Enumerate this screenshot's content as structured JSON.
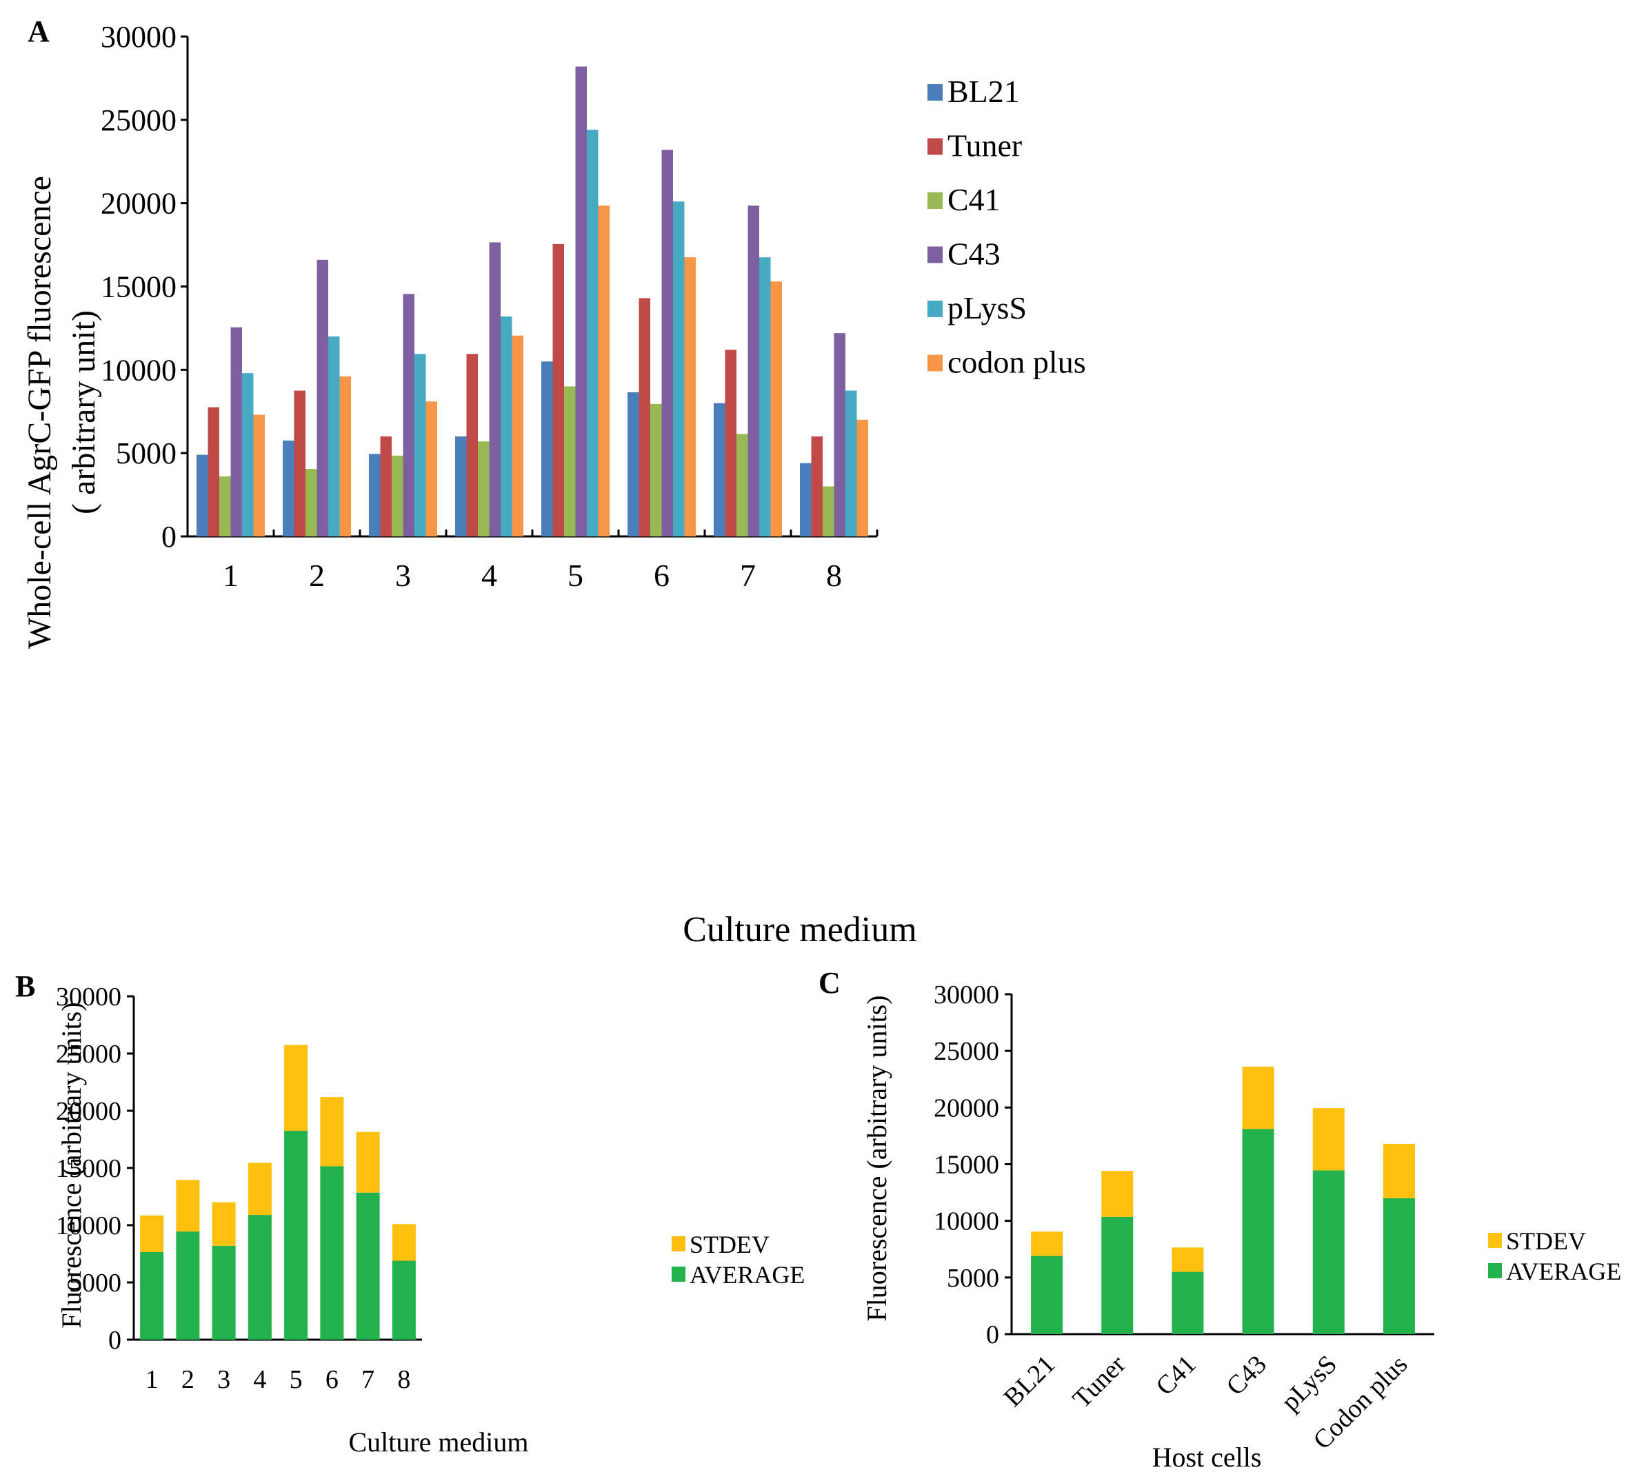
{
  "chart_data": [
    {
      "panel": "A",
      "type": "bar",
      "title": "",
      "xlabel": "Culture medium",
      "ylabel": "Whole-cell AgrC-GFP fluorescence",
      "ylabel2": "( arbitrary unit)",
      "ylim": [
        0,
        30000
      ],
      "yticks": [
        0,
        5000,
        10000,
        15000,
        20000,
        25000,
        30000
      ],
      "categories": [
        "1",
        "2",
        "3",
        "4",
        "5",
        "6",
        "7",
        "8"
      ],
      "legend_position": "right",
      "series": [
        {
          "name": "BL21",
          "color": "#4a7ebb",
          "values": [
            4900,
            5750,
            4950,
            6000,
            10500,
            8650,
            8000,
            4400
          ]
        },
        {
          "name": "Tuner",
          "color": "#be4b48",
          "values": [
            7750,
            8750,
            6000,
            10950,
            17550,
            14300,
            11200,
            6000
          ]
        },
        {
          "name": "C41",
          "color": "#98b954",
          "values": [
            3600,
            4050,
            4850,
            5700,
            9000,
            7950,
            6150,
            3000
          ]
        },
        {
          "name": "C43",
          "color": "#7d60a0",
          "values": [
            12550,
            16600,
            14550,
            17650,
            28200,
            23200,
            19850,
            12200
          ]
        },
        {
          "name": "pLysS",
          "color": "#46aac5",
          "values": [
            9800,
            12000,
            10950,
            13200,
            24400,
            20100,
            16750,
            8750
          ]
        },
        {
          "name": "codon plus",
          "color": "#f79646",
          "values": [
            7300,
            9600,
            8100,
            12050,
            19850,
            16750,
            15300,
            7000
          ]
        }
      ]
    },
    {
      "panel": "B",
      "type": "bar",
      "stacked": true,
      "xlabel": "Culture medium",
      "ylabel": "Fluorescence (arbitrary units)",
      "ylim": [
        0,
        30000
      ],
      "yticks": [
        0,
        5000,
        10000,
        15000,
        20000,
        25000,
        30000
      ],
      "categories": [
        "1",
        "2",
        "3",
        "4",
        "5",
        "6",
        "7",
        "8"
      ],
      "legend_position": "right",
      "series": [
        {
          "name": "STDEV",
          "color": "#ffc010",
          "values": [
            3200,
            4500,
            3800,
            4550,
            7500,
            6050,
            5300,
            3200
          ]
        },
        {
          "name": "AVERAGE",
          "color": "#22b14c",
          "values": [
            7650,
            9450,
            8200,
            10900,
            18250,
            15150,
            12850,
            6900
          ]
        }
      ]
    },
    {
      "panel": "C",
      "type": "bar",
      "stacked": true,
      "xlabel": "Host cells",
      "ylabel": "Fluorescence (arbitrary units)",
      "ylim": [
        0,
        30000
      ],
      "yticks": [
        0,
        5000,
        10000,
        15000,
        20000,
        25000,
        30000
      ],
      "categories": [
        "BL21",
        "Tuner",
        "C41",
        "C43",
        "pLysS",
        "Codon plus"
      ],
      "legend_position": "right",
      "series": [
        {
          "name": "STDEV",
          "color": "#ffc010",
          "values": [
            2150,
            4050,
            2150,
            5500,
            5500,
            4800
          ]
        },
        {
          "name": "AVERAGE",
          "color": "#22b14c",
          "values": [
            6900,
            10350,
            5500,
            18100,
            14450,
            12000
          ]
        }
      ]
    }
  ]
}
